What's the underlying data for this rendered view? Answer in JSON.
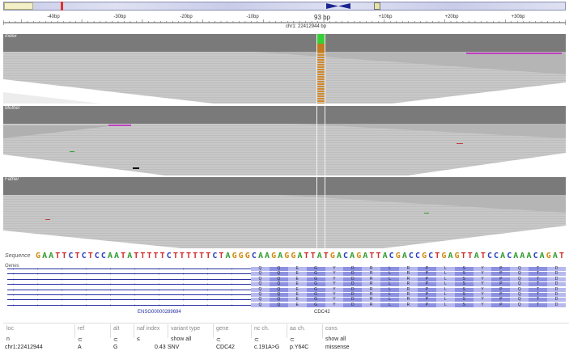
{
  "ideogram": {
    "highlight_color": "#e03030"
  },
  "ruler": {
    "span_label": "93 bp",
    "center_label": "chr1: 22412944 bp",
    "ticks": [
      "-40bp",
      "-30bp",
      "-20bp",
      "-10bp",
      "+10bp",
      "+20bp",
      "+30bp"
    ]
  },
  "tracks": [
    {
      "label": "Index"
    },
    {
      "label": "Mother"
    },
    {
      "label": "Father"
    }
  ],
  "sequence": {
    "label": "Sequence",
    "bases": "GAATTCTCTCCAATATTTTTCTTTTTTCTAGGGCAAGAGGATTATGACAGATTACGACCGCTGAGTTATCCACAAACAGAT",
    "colors": {
      "A": "#2e9b2e",
      "C": "#2a3fc0",
      "G": "#d08a10",
      "T": "#d03030"
    }
  },
  "genes": {
    "label": "Genes",
    "transcript_id": "ENSG00000289694",
    "gene_name": "CDC42",
    "amino_acids": [
      "Q",
      "Q",
      "E",
      "G",
      "Y",
      "D",
      "R",
      "L",
      "R",
      "P",
      "L",
      "S",
      "Y",
      "P",
      "Q",
      "T",
      "D"
    ]
  },
  "variant_table": {
    "headers": [
      "loc",
      "ref",
      "alt",
      "naf index",
      "variant type",
      "gene",
      "nc ch.",
      "aa ch.",
      "cons"
    ],
    "filters": [
      "n",
      "⊂",
      "⊂",
      "≤",
      "show all",
      "⊂",
      "⊂",
      "⊂",
      "show all"
    ],
    "row": {
      "loc": "chr1:22412944",
      "ref": "A",
      "alt": "G",
      "naf": "0.43",
      "type": "SNV",
      "gene": "CDC42",
      "nc": "c.191A>G",
      "aa": "p.Y64C",
      "cons": "missense"
    }
  }
}
